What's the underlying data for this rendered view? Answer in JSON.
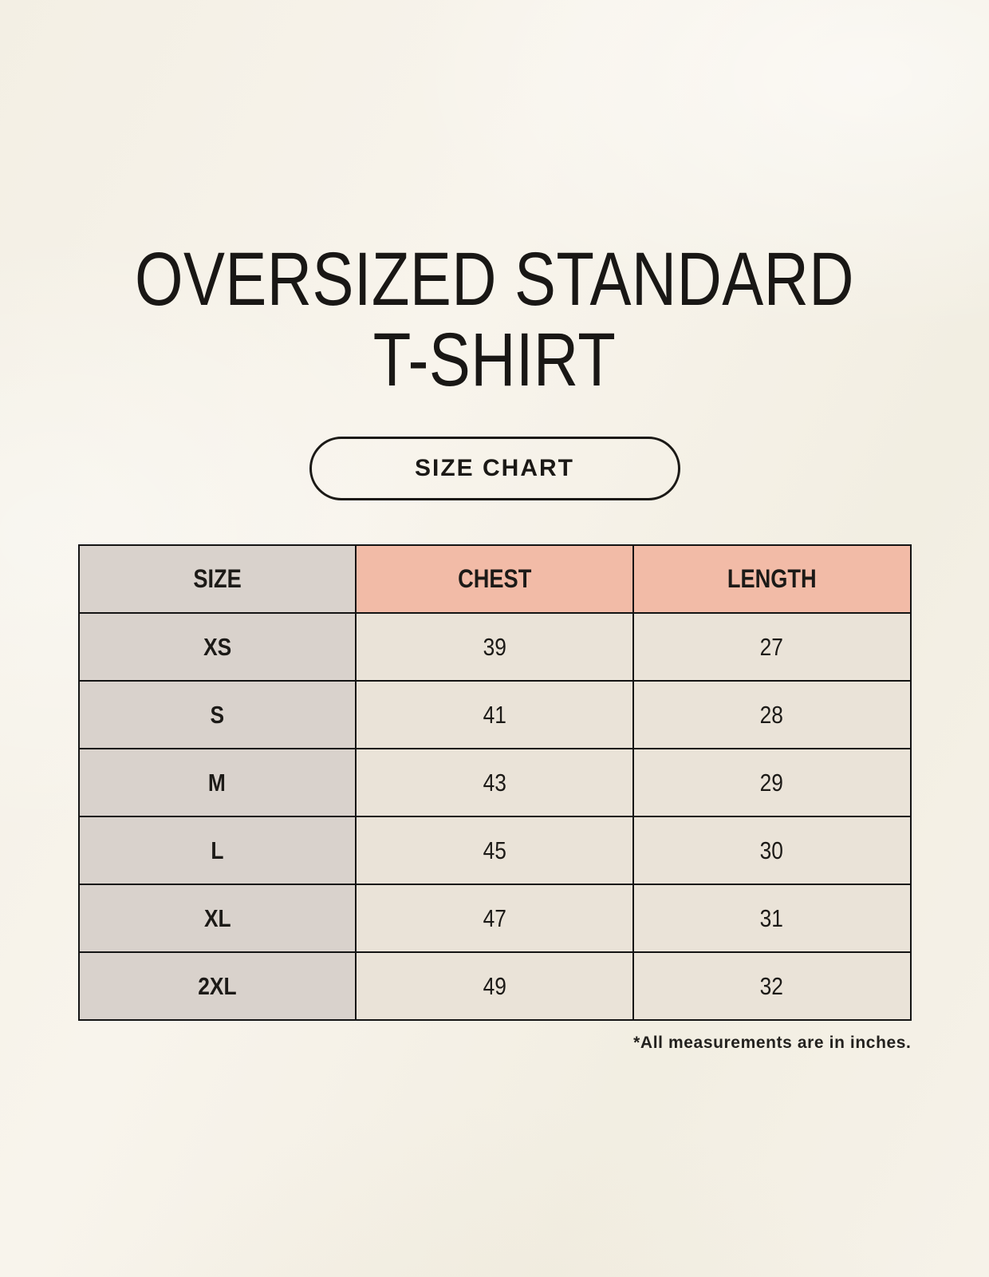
{
  "page": {
    "title_lines": [
      "OVERSIZED STANDARD",
      "T-SHIRT"
    ],
    "size_chart_button": "SIZE CHART",
    "footnote": "*All measurements are in inches."
  },
  "colors": {
    "text": "#1c1a17",
    "table_border": "#141414",
    "header_size_bg": "#d9d2cc",
    "header_measure_bg": "#f2bba7",
    "size_col_bg": "#d9d2cc",
    "data_cell_bg": "#eae3d8",
    "page_bg": "#f6f2e9"
  },
  "table": {
    "columns": [
      "SIZE",
      "CHEST",
      "LENGTH"
    ],
    "rows": [
      {
        "size": "XS",
        "chest": "39",
        "length": "27"
      },
      {
        "size": "S",
        "chest": "41",
        "length": "28"
      },
      {
        "size": "M",
        "chest": "43",
        "length": "29"
      },
      {
        "size": "L",
        "chest": "45",
        "length": "30"
      },
      {
        "size": "XL",
        "chest": "47",
        "length": "31"
      },
      {
        "size": "2XL",
        "chest": "49",
        "length": "32"
      }
    ],
    "units_note": "inches"
  }
}
